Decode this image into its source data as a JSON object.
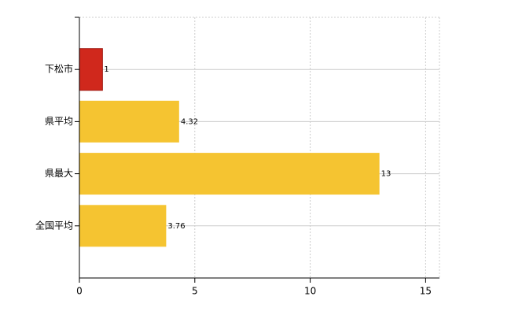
{
  "chart_data": {
    "type": "bar",
    "orientation": "horizontal",
    "categories": [
      "下松市",
      "県平均",
      "県最大",
      "全国平均"
    ],
    "values": [
      1,
      4.32,
      13,
      3.76
    ],
    "colors": [
      "#d0281c",
      "#f5c431",
      "#f5c431",
      "#f5c431"
    ],
    "xlim": [
      0,
      15.6
    ],
    "xticks": [
      0,
      5,
      10,
      15
    ],
    "grid": true
  }
}
